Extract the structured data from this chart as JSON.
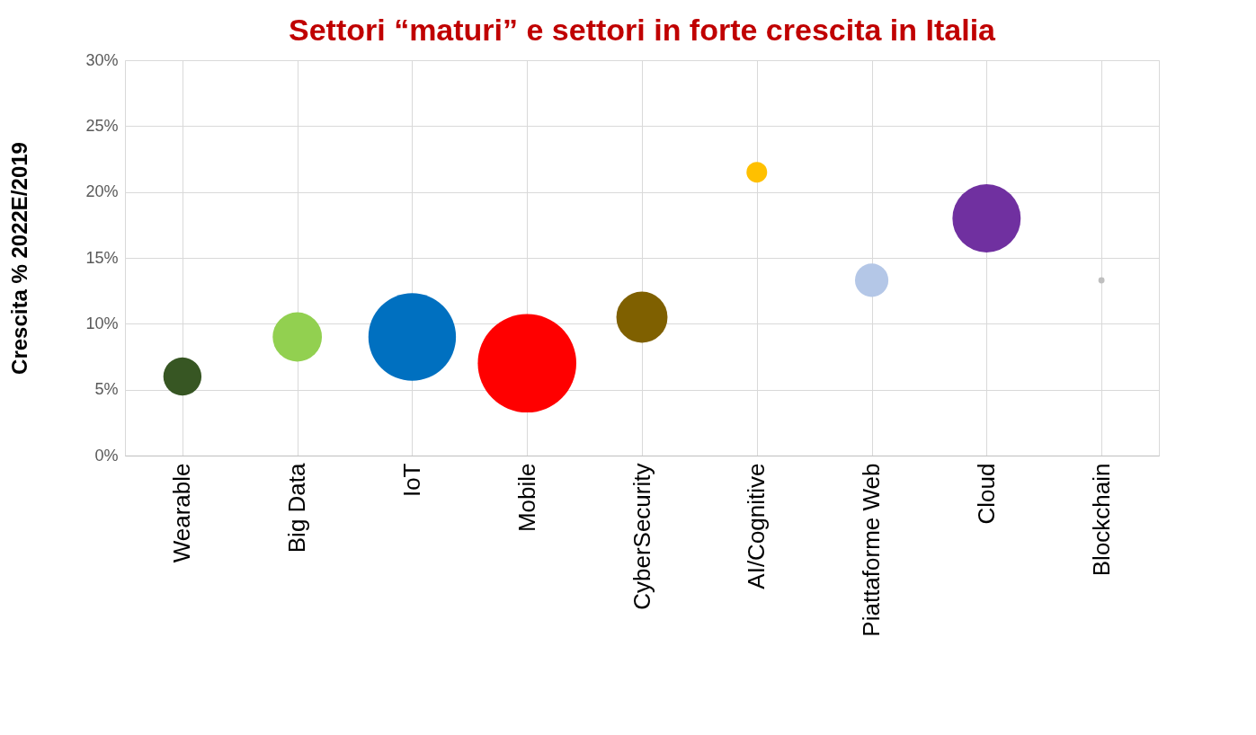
{
  "chart_data": {
    "type": "bubble",
    "title": "Settori “maturi” e settori in forte crescita in Italia",
    "ylabel": "Crescita % 2022E/2019",
    "categories": [
      "Wearable",
      "Big Data",
      "IoT",
      "Mobile",
      "CyberSecurity",
      "AI/Cognitive",
      "Piattaforme Web",
      "Cloud",
      "Blockchain"
    ],
    "values": [
      6,
      9,
      9,
      7,
      10.5,
      21.5,
      13.3,
      18,
      13.3
    ],
    "sizes": [
      0.15,
      0.25,
      0.79,
      1,
      0.27,
      0.044,
      0.115,
      0.48,
      0.004
    ],
    "colors": [
      "#375623",
      "#92d050",
      "#0070c0",
      "#ff0000",
      "#7f6000",
      "#ffc000",
      "#b4c7e7",
      "#7030a0",
      "#bfbfbf"
    ],
    "ylim": [
      0,
      30
    ],
    "yticks": [
      {
        "value": 0,
        "label": "0%"
      },
      {
        "value": 5,
        "label": "5%"
      },
      {
        "value": 10,
        "label": "10%"
      },
      {
        "value": 15,
        "label": "15%"
      },
      {
        "value": 20,
        "label": "20%"
      },
      {
        "value": 25,
        "label": "25%"
      },
      {
        "value": 30,
        "label": "30%"
      }
    ],
    "grid": true
  }
}
